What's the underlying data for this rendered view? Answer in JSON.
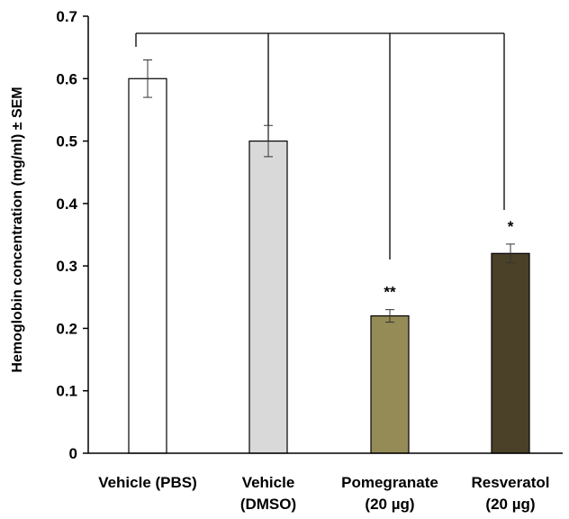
{
  "chart_data": {
    "type": "bar",
    "title": "",
    "xlabel": "",
    "ylabel": "Hemoglobin concentration (mg/ml) ± SEM",
    "ylim": [
      0,
      0.7
    ],
    "y_ticks": [
      "0",
      "0.1",
      "0.2",
      "0.3",
      "0.4",
      "0.5",
      "0.6",
      "0.7"
    ],
    "grid": false,
    "legend": "none",
    "categories": [
      [
        "Vehicle (PBS)"
      ],
      [
        "Vehicle",
        "(DMSO)"
      ],
      [
        "Pomegranate",
        "(20 µg)"
      ],
      [
        "Resveratol",
        "(20 µg)"
      ]
    ],
    "values": [
      0.6,
      0.5,
      0.22,
      0.32
    ],
    "errors": [
      0.03,
      0.025,
      0.01,
      0.015
    ],
    "significance": [
      "",
      "",
      "**",
      "*"
    ],
    "bar_colors": [
      "#ffffff",
      "#d9d9d9",
      "#958b56",
      "#4b4128"
    ],
    "comparison_bracket": {
      "reference_category": "Vehicle (PBS)",
      "compared_categories": [
        "Vehicle",
        "Pomegranate",
        "Resveratol"
      ]
    }
  }
}
